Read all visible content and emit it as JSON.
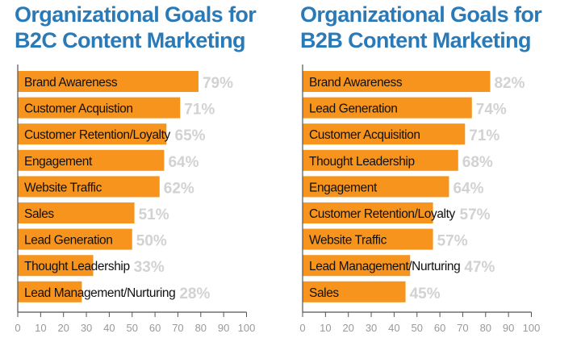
{
  "colors": {
    "title": "#2a7ab8",
    "bar": "#f7941d",
    "value_label": "#d2d2d2",
    "axis": "#555555",
    "tick_label": "#999999"
  },
  "chart_data": [
    {
      "type": "bar",
      "orientation": "horizontal",
      "title_lines": [
        "Organizational Goals for",
        "B2C Content Marketing"
      ],
      "categories": [
        "Brand Awareness",
        "Customer Acquistion",
        "Customer Retention/Loyalty",
        "Engagement",
        "Website Traffic",
        "Sales",
        "Lead Generation",
        "Thought Leadership",
        "Lead Management/Nurturing"
      ],
      "values": [
        79,
        71,
        65,
        64,
        62,
        51,
        50,
        33,
        28
      ],
      "value_labels": [
        "79%",
        "71%",
        "65%",
        "64%",
        "62%",
        "51%",
        "50%",
        "33%",
        "28%"
      ],
      "xlim": [
        0,
        100
      ],
      "xticks": [
        "0",
        "10",
        "20",
        "30",
        "40",
        "50",
        "60",
        "70",
        "80",
        "90",
        "100"
      ],
      "grid": false
    },
    {
      "type": "bar",
      "orientation": "horizontal",
      "title_lines": [
        "Organizational Goals for",
        "B2B Content Marketing"
      ],
      "categories": [
        "Brand Awareness",
        "Lead Generation",
        "Customer Acquisition",
        "Thought Leadership",
        "Engagement",
        "Customer Retention/Loyalty",
        "Website Traffic",
        "Lead Management/Nurturing",
        "Sales"
      ],
      "values": [
        82,
        74,
        71,
        68,
        64,
        57,
        57,
        47,
        45
      ],
      "value_labels": [
        "82%",
        "74%",
        "71%",
        "68%",
        "64%",
        "57%",
        "57%",
        "47%",
        "45%"
      ],
      "xlim": [
        0,
        100
      ],
      "xticks": [
        "0",
        "10",
        "20",
        "30",
        "40",
        "50",
        "60",
        "70",
        "80",
        "90",
        "100"
      ],
      "grid": false
    }
  ]
}
